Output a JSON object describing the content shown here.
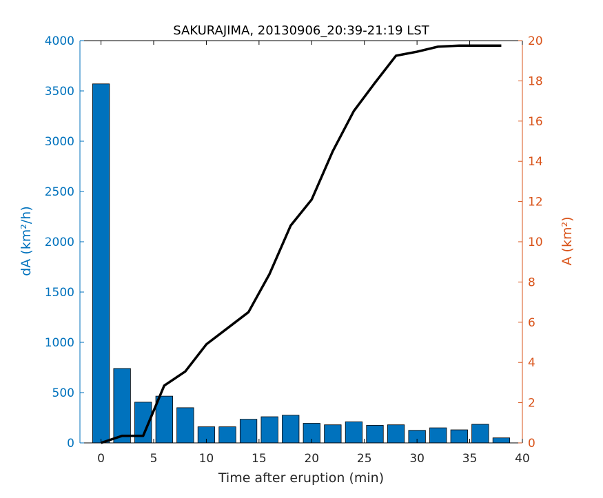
{
  "colors": {
    "left_axis": "#0072BD",
    "right_axis": "#D95319",
    "bars": "#0072BD",
    "line": "#000000",
    "axes": "#000000"
  },
  "chart_data": {
    "type": "bar",
    "title": "SAKURAJIMA, 20130906_20:39-21:19 LST",
    "xlabel": "Time after eruption (min)",
    "ylabel_left": "dA (km²/h)",
    "ylabel_right": "A (km²)",
    "xlim": [
      -2,
      40
    ],
    "ylim_left": [
      0,
      4000
    ],
    "ylim_right": [
      0,
      20
    ],
    "x_ticks": [
      0,
      5,
      10,
      15,
      20,
      25,
      30,
      35,
      40
    ],
    "y_ticks_left": [
      0,
      500,
      1000,
      1500,
      2000,
      2500,
      3000,
      3500,
      4000
    ],
    "y_ticks_right": [
      0,
      2,
      4,
      6,
      8,
      10,
      12,
      14,
      16,
      18,
      20
    ],
    "grid": false,
    "series": [
      {
        "type": "bar",
        "axis": "left",
        "x": [
          0,
          2,
          4,
          6,
          8,
          10,
          12,
          14,
          16,
          18,
          20,
          22,
          24,
          26,
          28,
          30,
          32,
          34,
          36,
          38
        ],
        "values": [
          3570,
          740,
          405,
          465,
          350,
          160,
          160,
          235,
          260,
          275,
          195,
          180,
          210,
          175,
          180,
          125,
          150,
          130,
          185,
          50
        ]
      },
      {
        "type": "line",
        "axis": "right",
        "x": [
          0,
          2,
          4,
          6,
          8,
          10,
          12,
          14,
          16,
          18,
          20,
          22,
          24,
          26,
          28,
          30,
          32,
          34,
          36,
          38
        ],
        "values": [
          0.0,
          0.35,
          0.35,
          2.85,
          3.55,
          4.9,
          5.7,
          6.5,
          8.4,
          10.8,
          12.1,
          14.5,
          16.5,
          17.9,
          19.25,
          19.45,
          19.7,
          19.75,
          19.75,
          19.75
        ]
      }
    ]
  }
}
